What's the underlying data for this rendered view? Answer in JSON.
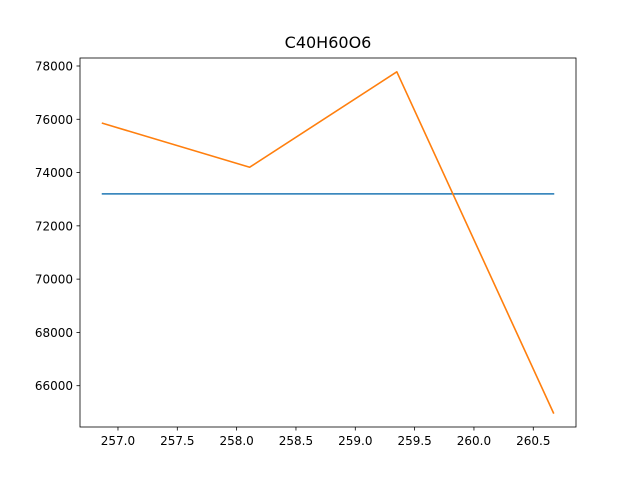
{
  "chart_data": {
    "type": "line",
    "title": "C40H60O6",
    "xlabel": "",
    "ylabel": "",
    "xlim": [
      256.68,
      260.86
    ],
    "ylim": [
      64450,
      78300
    ],
    "grid": false,
    "legend": "none",
    "x_ticks": [
      257.0,
      257.5,
      258.0,
      258.5,
      259.0,
      259.5,
      260.0,
      260.5
    ],
    "x_tick_labels": [
      "257.0",
      "257.5",
      "258.0",
      "258.5",
      "259.0",
      "259.5",
      "260.0",
      "260.5"
    ],
    "y_ticks": [
      66000,
      68000,
      70000,
      72000,
      74000,
      76000,
      78000
    ],
    "y_tick_labels": [
      "66000",
      "68000",
      "70000",
      "72000",
      "74000",
      "76000",
      "78000"
    ],
    "series": [
      {
        "color": "#1f77b4",
        "x": [
          256.87,
          260.67
        ],
        "y": [
          73200,
          73200
        ]
      },
      {
        "color": "#ff7f0e",
        "x": [
          256.87,
          258.11,
          259.35,
          260.67
        ],
        "y": [
          75850,
          74200,
          77780,
          64980
        ]
      }
    ]
  }
}
